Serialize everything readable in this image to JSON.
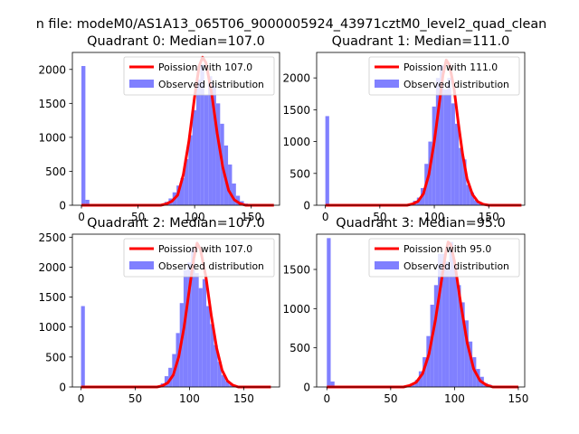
{
  "figure": {
    "suptitle": "n file: modeM0/AS1A13_065T06_9000005924_43971cztM0_level2_quad_clean"
  },
  "colors": {
    "histogram": "#8080ff",
    "poisson_line": "#ff0000",
    "axes": "#000000",
    "background": "#ffffff"
  },
  "chart_data": [
    {
      "type": "bar",
      "title": "Quadrant 0: Median=107.0",
      "xlim": [
        -8,
        175
      ],
      "ylim": [
        0,
        2250
      ],
      "xticks": [
        0,
        50,
        100,
        150
      ],
      "yticks": [
        0,
        500,
        1000,
        1500,
        2000
      ],
      "legend_position": "top-right",
      "series": [
        {
          "name": "Poission with 107.0",
          "kind": "line",
          "x": [
            0,
            70,
            75,
            80,
            85,
            90,
            95,
            100,
            104,
            107,
            110,
            115,
            120,
            125,
            130,
            135,
            140,
            145,
            170
          ],
          "values": [
            0,
            0,
            20,
            60,
            150,
            450,
            950,
            1600,
            2050,
            2180,
            2100,
            1650,
            1050,
            550,
            220,
            80,
            25,
            0,
            0
          ]
        },
        {
          "name": "Observed distribution",
          "kind": "bar",
          "bin_edges": [
            0,
            3.5,
            7,
            10.5,
            14,
            17.5,
            21,
            24.5,
            28,
            31.5,
            35,
            38.5,
            42,
            45.5,
            49,
            52.5,
            56,
            59.5,
            63,
            66.5,
            70,
            73.5,
            77,
            80.5,
            84,
            87.5,
            91,
            94.5,
            98,
            101.5,
            105,
            108.5,
            112,
            115.5,
            119,
            122.5,
            126,
            129.5,
            133,
            136.5,
            140,
            143.5,
            147,
            150.5,
            154,
            157.5,
            161,
            164.5,
            168,
            171.5
          ],
          "values": [
            2050,
            80,
            0,
            0,
            0,
            0,
            0,
            0,
            0,
            0,
            0,
            0,
            0,
            0,
            0,
            0,
            0,
            0,
            0,
            0,
            10,
            50,
            100,
            190,
            290,
            400,
            680,
            1030,
            1400,
            1850,
            2070,
            1620,
            1900,
            1750,
            1500,
            1200,
            880,
            600,
            320,
            140,
            60,
            25,
            10,
            5,
            5,
            0,
            0,
            0,
            0
          ]
        }
      ]
    },
    {
      "type": "bar",
      "title": "Quadrant 1: Median=111.0",
      "xlim": [
        -8,
        183
      ],
      "ylim": [
        0,
        2400
      ],
      "xticks": [
        0,
        50,
        100,
        150
      ],
      "yticks": [
        0,
        500,
        1000,
        1500,
        2000
      ],
      "legend_position": "top-right",
      "series": [
        {
          "name": "Poission with 111.0",
          "kind": "line",
          "x": [
            0,
            75,
            80,
            85,
            90,
            95,
            100,
            105,
            108,
            111,
            114,
            118,
            122,
            126,
            130,
            135,
            140,
            145,
            150,
            180
          ],
          "values": [
            0,
            0,
            20,
            60,
            180,
            480,
            1000,
            1650,
            2050,
            2280,
            2200,
            1850,
            1300,
            800,
            420,
            170,
            55,
            15,
            0,
            0
          ]
        },
        {
          "name": "Observed distribution",
          "kind": "bar",
          "bin_edges": [
            0,
            3.5,
            7,
            10.5,
            14,
            17.5,
            21,
            24.5,
            28,
            31.5,
            35,
            38.5,
            42,
            45.5,
            49,
            52.5,
            56,
            59.5,
            63,
            66.5,
            70,
            73.5,
            77,
            80.5,
            84,
            87.5,
            91,
            94.5,
            98,
            101.5,
            105,
            108.5,
            112,
            115.5,
            119,
            122.5,
            126,
            129.5,
            133,
            136.5,
            140,
            143.5,
            147,
            150.5,
            154,
            157.5,
            161,
            164.5,
            168,
            171.5,
            175,
            178.5
          ],
          "values": [
            1400,
            20,
            0,
            0,
            0,
            0,
            0,
            0,
            0,
            0,
            0,
            0,
            0,
            0,
            0,
            0,
            0,
            0,
            0,
            0,
            0,
            5,
            30,
            70,
            120,
            270,
            650,
            1000,
            1550,
            2000,
            2200,
            1820,
            2000,
            1600,
            1280,
            900,
            720,
            320,
            200,
            80,
            30,
            20,
            10,
            5,
            5,
            5,
            0,
            0,
            0,
            0,
            0
          ]
        }
      ]
    },
    {
      "type": "bar",
      "title": "Quadrant 2: Median=107.0",
      "xlim": [
        -8,
        183
      ],
      "ylim": [
        0,
        2550
      ],
      "xticks": [
        0,
        50,
        100,
        150
      ],
      "yticks": [
        0,
        500,
        1000,
        1500,
        2000,
        2500
      ],
      "legend_position": "top-right",
      "series": [
        {
          "name": "Poission with 107.0",
          "kind": "line",
          "x": [
            0,
            70,
            75,
            80,
            85,
            90,
            95,
            100,
            104,
            107,
            110,
            115,
            120,
            125,
            130,
            135,
            140,
            145,
            175
          ],
          "values": [
            0,
            0,
            20,
            70,
            200,
            500,
            1000,
            1650,
            2150,
            2400,
            2300,
            1850,
            1200,
            650,
            280,
            100,
            30,
            0,
            0
          ]
        },
        {
          "name": "Observed distribution",
          "kind": "bar",
          "bin_edges": [
            0,
            3.5,
            7,
            10.5,
            14,
            17.5,
            21,
            24.5,
            28,
            31.5,
            35,
            38.5,
            42,
            45.5,
            49,
            52.5,
            56,
            59.5,
            63,
            66.5,
            70,
            73.5,
            77,
            80.5,
            84,
            87.5,
            91,
            94.5,
            98,
            101.5,
            105,
            108.5,
            112,
            115.5,
            119,
            122.5,
            126,
            129.5,
            133,
            136.5,
            140,
            143.5,
            147,
            150.5,
            154,
            157.5,
            161,
            164.5,
            168,
            171.5
          ],
          "values": [
            1350,
            0,
            0,
            0,
            0,
            0,
            0,
            0,
            0,
            0,
            0,
            0,
            0,
            0,
            0,
            0,
            0,
            0,
            0,
            0,
            10,
            60,
            180,
            320,
            550,
            900,
            1400,
            1950,
            2080,
            2300,
            1900,
            1650,
            1800,
            1350,
            1050,
            700,
            420,
            200,
            100,
            40,
            20,
            10,
            5,
            0,
            0,
            0,
            0,
            0,
            0
          ]
        }
      ]
    },
    {
      "type": "bar",
      "title": "Quadrant 3: Median=95.0",
      "xlim": [
        -8,
        155
      ],
      "ylim": [
        0,
        1950
      ],
      "xticks": [
        0,
        50,
        100,
        150
      ],
      "yticks": [
        0,
        500,
        1000,
        1500
      ],
      "legend_position": "top-right",
      "series": [
        {
          "name": "Poission with 95.0",
          "kind": "line",
          "x": [
            0,
            60,
            65,
            70,
            75,
            80,
            85,
            90,
            93,
            95,
            97,
            100,
            105,
            110,
            115,
            120,
            125,
            130,
            150
          ],
          "values": [
            0,
            0,
            20,
            60,
            170,
            420,
            850,
            1380,
            1700,
            1850,
            1820,
            1600,
            1050,
            560,
            230,
            80,
            25,
            0,
            0
          ]
        },
        {
          "name": "Observed distribution",
          "kind": "bar",
          "bin_edges": [
            0,
            3,
            6,
            9,
            12,
            15,
            18,
            21,
            24,
            27,
            30,
            33,
            36,
            39,
            42,
            45,
            48,
            51,
            54,
            57,
            60,
            63,
            66,
            69,
            72,
            75,
            78,
            81,
            84,
            87,
            90,
            93,
            96,
            99,
            102,
            105,
            108,
            111,
            114,
            117,
            120,
            123,
            126,
            129,
            132,
            135,
            138,
            141,
            144,
            147
          ],
          "values": [
            1900,
            70,
            0,
            0,
            0,
            0,
            0,
            0,
            0,
            0,
            0,
            0,
            0,
            0,
            0,
            0,
            0,
            0,
            0,
            0,
            0,
            10,
            40,
            90,
            200,
            380,
            650,
            1050,
            1300,
            1700,
            1700,
            1600,
            1850,
            1560,
            1300,
            1080,
            850,
            580,
            380,
            230,
            130,
            50,
            30,
            10,
            5,
            5,
            0,
            0,
            0
          ]
        }
      ]
    }
  ]
}
